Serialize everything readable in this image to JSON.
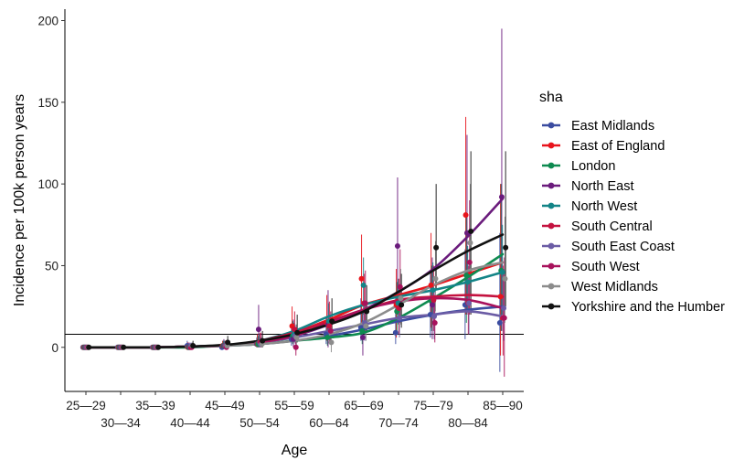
{
  "chart_data": {
    "type": "line",
    "title": "",
    "xlabel": "Age",
    "ylabel": "Incidence per 100k person years",
    "categories": [
      "25—29",
      "30—34",
      "35—39",
      "40—44",
      "45—49",
      "50—54",
      "55—59",
      "60—64",
      "65—69",
      "70—74",
      "75—79",
      "80—84",
      "85—90"
    ],
    "ylim": [
      -27,
      207
    ],
    "yticks": [
      0,
      50,
      100,
      150,
      200
    ],
    "reference_line_y": 8,
    "grid": false,
    "legend_title": "sha",
    "legend_position": "right",
    "series": [
      {
        "name": "East Midlands",
        "color": "#3B4CA0",
        "values": [
          0,
          0,
          0,
          1,
          0,
          2,
          5,
          8,
          12,
          9,
          20,
          26,
          15
        ],
        "smooth": [
          0,
          0,
          0,
          0.5,
          1,
          2,
          4,
          7,
          11,
          16,
          20,
          23,
          25
        ],
        "ci": [
          [
            0,
            0
          ],
          [
            0,
            0
          ],
          [
            0,
            0
          ],
          [
            0,
            4
          ],
          [
            0,
            2
          ],
          [
            0,
            6
          ],
          [
            1,
            12
          ],
          [
            2,
            18
          ],
          [
            4,
            30
          ],
          [
            2,
            30
          ],
          [
            6,
            45
          ],
          [
            5,
            60
          ],
          [
            -15,
            70
          ]
        ]
      },
      {
        "name": "East of England",
        "color": "#E8141C",
        "values": [
          0,
          0,
          0,
          0,
          1,
          2,
          13,
          15,
          42,
          26,
          38,
          81,
          31
        ],
        "smooth": [
          0,
          0,
          0,
          0.5,
          1,
          4,
          9,
          17,
          26,
          32,
          38,
          45,
          52
        ],
        "ci": [
          [
            0,
            0
          ],
          [
            0,
            0
          ],
          [
            0,
            0
          ],
          [
            0,
            3
          ],
          [
            0,
            4
          ],
          [
            0,
            8
          ],
          [
            3,
            25
          ],
          [
            4,
            32
          ],
          [
            15,
            69
          ],
          [
            6,
            48
          ],
          [
            12,
            70
          ],
          [
            20,
            141
          ],
          [
            -5,
            100
          ]
        ]
      },
      {
        "name": "London",
        "color": "#0E8A50",
        "values": [
          0,
          0,
          0,
          0,
          1,
          2,
          7,
          6,
          10,
          22,
          28,
          44,
          47
        ],
        "smooth": [
          0,
          0,
          0,
          0,
          1,
          2,
          4,
          6,
          9,
          18,
          30,
          43,
          57
        ],
        "ci": [
          [
            0,
            0
          ],
          [
            0,
            0
          ],
          [
            0,
            0
          ],
          [
            0,
            2
          ],
          [
            0,
            4
          ],
          [
            0,
            7
          ],
          [
            2,
            16
          ],
          [
            1,
            15
          ],
          [
            2,
            22
          ],
          [
            8,
            40
          ],
          [
            10,
            50
          ],
          [
            15,
            80
          ],
          [
            10,
            100
          ]
        ]
      },
      {
        "name": "North East",
        "color": "#6A1B7C",
        "values": [
          0,
          0,
          0,
          0,
          1,
          11,
          5,
          14,
          6,
          62,
          26,
          70,
          92
        ],
        "smooth": [
          0,
          0,
          0,
          0.5,
          1,
          3,
          7,
          14,
          23,
          34,
          48,
          68,
          91
        ],
        "ci": [
          [
            0,
            0
          ],
          [
            0,
            0
          ],
          [
            0,
            0
          ],
          [
            0,
            3
          ],
          [
            0,
            5
          ],
          [
            0,
            26
          ],
          [
            0,
            17
          ],
          [
            0,
            35
          ],
          [
            -5,
            22
          ],
          [
            20,
            104
          ],
          [
            5,
            55
          ],
          [
            20,
            130
          ],
          [
            10,
            195
          ]
        ]
      },
      {
        "name": "North West",
        "color": "#138487",
        "values": [
          0,
          0,
          0,
          0,
          1,
          3,
          8,
          16,
          38,
          27,
          35,
          40,
          46
        ],
        "smooth": [
          0,
          0,
          0,
          0.5,
          1,
          4,
          10,
          19,
          26,
          31,
          35,
          40,
          46
        ],
        "ci": [
          [
            0,
            0
          ],
          [
            0,
            0
          ],
          [
            0,
            0
          ],
          [
            0,
            2
          ],
          [
            0,
            4
          ],
          [
            0,
            8
          ],
          [
            3,
            15
          ],
          [
            7,
            27
          ],
          [
            20,
            55
          ],
          [
            14,
            42
          ],
          [
            18,
            52
          ],
          [
            22,
            62
          ],
          [
            20,
            75
          ]
        ]
      },
      {
        "name": "South Central",
        "color": "#C4123F",
        "values": [
          0,
          0,
          0,
          0,
          1,
          3,
          11,
          13,
          27,
          24,
          29,
          27,
          18
        ],
        "smooth": [
          0,
          0,
          0,
          0.5,
          1,
          4,
          9,
          16,
          23,
          29,
          31,
          32,
          31
        ],
        "ci": [
          [
            0,
            0
          ],
          [
            0,
            0
          ],
          [
            0,
            0
          ],
          [
            0,
            2
          ],
          [
            0,
            4
          ],
          [
            0,
            9
          ],
          [
            3,
            22
          ],
          [
            3,
            28
          ],
          [
            10,
            45
          ],
          [
            8,
            42
          ],
          [
            10,
            50
          ],
          [
            8,
            50
          ],
          [
            -5,
            50
          ]
        ]
      },
      {
        "name": "South East Coast",
        "color": "#6B5CA5",
        "values": [
          0,
          0,
          0,
          1,
          1,
          2,
          7,
          10,
          15,
          18,
          19,
          27,
          24
        ],
        "smooth": [
          0,
          0,
          0,
          0.5,
          1,
          3,
          6,
          10,
          14,
          18,
          20,
          22,
          19
        ],
        "ci": [
          [
            0,
            0
          ],
          [
            0,
            0
          ],
          [
            0,
            0
          ],
          [
            0,
            3
          ],
          [
            0,
            4
          ],
          [
            0,
            6
          ],
          [
            2,
            14
          ],
          [
            3,
            20
          ],
          [
            4,
            28
          ],
          [
            6,
            34
          ],
          [
            5,
            35
          ],
          [
            8,
            50
          ],
          [
            4,
            48
          ]
        ]
      },
      {
        "name": "South West",
        "color": "#A8125C",
        "values": [
          0,
          0,
          0,
          0,
          0,
          3,
          0,
          10,
          27,
          37,
          15,
          52,
          18
        ],
        "smooth": [
          0,
          0,
          0,
          0.5,
          1,
          3,
          7,
          15,
          23,
          28,
          30,
          29,
          24
        ],
        "ci": [
          [
            0,
            0
          ],
          [
            0,
            0
          ],
          [
            0,
            0
          ],
          [
            0,
            2
          ],
          [
            0,
            3
          ],
          [
            0,
            9
          ],
          [
            -5,
            6
          ],
          [
            2,
            22
          ],
          [
            10,
            47
          ],
          [
            15,
            60
          ],
          [
            3,
            32
          ],
          [
            20,
            90
          ],
          [
            -18,
            55
          ]
        ]
      },
      {
        "name": "West Midlands",
        "color": "#8C8C8C",
        "values": [
          0,
          0,
          0,
          1,
          1,
          2,
          6,
          3,
          13,
          30,
          42,
          64,
          42
        ],
        "smooth": [
          0,
          0,
          0,
          0.5,
          1,
          2,
          4,
          8,
          15,
          26,
          38,
          47,
          52
        ],
        "ci": [
          [
            0,
            0
          ],
          [
            0,
            0
          ],
          [
            0,
            0
          ],
          [
            0,
            3
          ],
          [
            0,
            4
          ],
          [
            0,
            6
          ],
          [
            1,
            14
          ],
          [
            -3,
            10
          ],
          [
            4,
            27
          ],
          [
            14,
            48
          ],
          [
            22,
            65
          ],
          [
            32,
            100
          ],
          [
            15,
            80
          ]
        ]
      },
      {
        "name": "Yorkshire and the Humber",
        "color": "#111111",
        "values": [
          0,
          0,
          0,
          1,
          3,
          4,
          9,
          16,
          22,
          26,
          61,
          71,
          61
        ],
        "smooth": [
          0,
          0,
          0,
          0.5,
          1.5,
          4,
          8,
          14,
          22,
          34,
          47,
          59,
          69
        ],
        "ci": [
          [
            0,
            0
          ],
          [
            0,
            0
          ],
          [
            0,
            0
          ],
          [
            0,
            4
          ],
          [
            0,
            7
          ],
          [
            0,
            10
          ],
          [
            3,
            20
          ],
          [
            6,
            30
          ],
          [
            10,
            38
          ],
          [
            12,
            45
          ],
          [
            35,
            100
          ],
          [
            20,
            120
          ],
          [
            25,
            120
          ]
        ]
      }
    ]
  }
}
